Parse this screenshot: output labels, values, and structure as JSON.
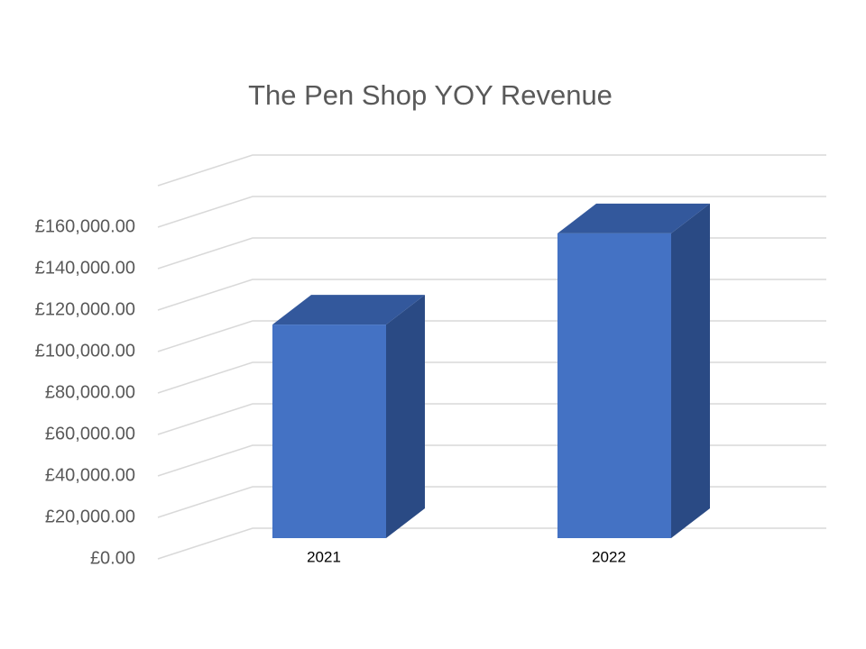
{
  "chart_data": {
    "type": "bar3d",
    "title": "The Pen Shop YOY Revenue",
    "categories": [
      "2021",
      "2022"
    ],
    "values": [
      103000,
      147000
    ],
    "color": "#4472c4",
    "ylim": [
      0,
      180000
    ],
    "yticks": [
      {
        "value": 0,
        "label": "£0.00"
      },
      {
        "value": 20000,
        "label": "£20,000.00"
      },
      {
        "value": 40000,
        "label": "£40,000.00"
      },
      {
        "value": 60000,
        "label": "£60,000.00"
      },
      {
        "value": 80000,
        "label": "£80,000.00"
      },
      {
        "value": 100000,
        "label": "£100,000.00"
      },
      {
        "value": 120000,
        "label": "£120,000.00"
      },
      {
        "value": 140000,
        "label": "£140,000.00"
      },
      {
        "value": 160000,
        "label": "£160,000.00"
      }
    ],
    "grid": true
  }
}
